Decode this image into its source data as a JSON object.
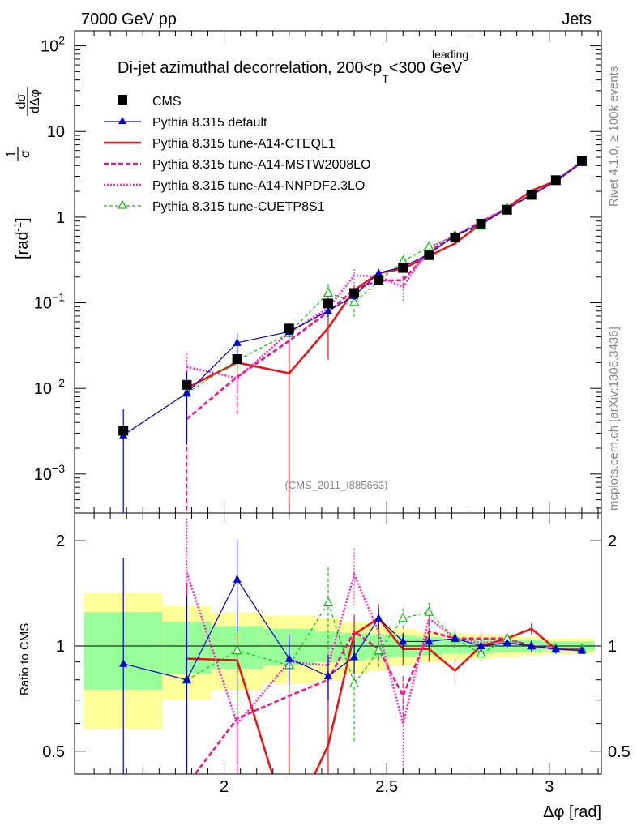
{
  "header": {
    "left_label": "7000 GeV pp",
    "right_label": "Jets"
  },
  "side_labels": {
    "rivet": "Rivet 4.1.0, ≥ 100k events",
    "source": "mcplots.cern.ch [arXiv:1306.3436]"
  },
  "colors": {
    "cms": "#000000",
    "default": "#0000cc",
    "cteql1": "#ee1111",
    "mstw": "#ee1188",
    "nnpdf": "#ff22cc",
    "cuetp8s1": "#11bb11",
    "band_outer": "#ffff99",
    "band_inner": "#99ff99"
  },
  "chart_data": {
    "type": "line",
    "title_main": "Di-jet azimuthal decorrelation, 200<p",
    "title_sup": "leading",
    "title_sub": "T",
    "title_end": "<300 GeV",
    "analysis_id": "(CMS_2011_I885663)",
    "ylabel": "1/σ dσ/dΔφ [rad⁻¹]",
    "ylabel_num": "dσ",
    "ylabel_den": "dΔφ",
    "ylabel_unit": "[rad",
    "ylabel_unit_exp": "-1",
    "ylabel_unit_end": "]",
    "ratio_ylabel": "Ratio to CMS",
    "xlabel": "Δφ [rad]",
    "xlim": [
      1.54,
      3.16
    ],
    "ylim_main": [
      0.00035,
      150
    ],
    "ylim_ratio": [
      0.43,
      2.4
    ],
    "x_ticks": [
      {
        "value": 2.0,
        "label": "2"
      },
      {
        "value": 2.5,
        "label": "2.5"
      },
      {
        "value": 3.0,
        "label": "3"
      }
    ],
    "y_ticks_main": [
      {
        "value": 0.001,
        "base": "10",
        "exp": "−3"
      },
      {
        "value": 0.01,
        "base": "10",
        "exp": "−2"
      },
      {
        "value": 0.1,
        "base": "10",
        "exp": "−1"
      },
      {
        "value": 1,
        "base": "1",
        "exp": ""
      },
      {
        "value": 10,
        "base": "10",
        "exp": ""
      },
      {
        "value": 100,
        "base": "10",
        "exp": "2"
      }
    ],
    "y_ticks_ratio": [
      {
        "value": 0.5,
        "label": "0.5"
      },
      {
        "value": 1,
        "label": "1"
      },
      {
        "value": 2,
        "label": "2"
      }
    ],
    "bins": [
      {
        "lo": 1.57,
        "hi": 1.81
      },
      {
        "lo": 1.81,
        "hi": 1.96
      },
      {
        "lo": 1.96,
        "hi": 2.12
      },
      {
        "lo": 2.12,
        "hi": 2.28
      },
      {
        "lo": 2.28,
        "hi": 2.36
      },
      {
        "lo": 2.36,
        "hi": 2.44
      },
      {
        "lo": 2.44,
        "hi": 2.51
      },
      {
        "lo": 2.51,
        "hi": 2.59
      },
      {
        "lo": 2.59,
        "hi": 2.67
      },
      {
        "lo": 2.67,
        "hi": 2.75
      },
      {
        "lo": 2.75,
        "hi": 2.83
      },
      {
        "lo": 2.83,
        "hi": 2.91
      },
      {
        "lo": 2.91,
        "hi": 2.98
      },
      {
        "lo": 2.98,
        "hi": 3.06
      },
      {
        "lo": 3.06,
        "hi": 3.14
      }
    ],
    "cms": {
      "name": "CMS",
      "x": [
        1.69,
        1.885,
        2.04,
        2.2,
        2.32,
        2.4,
        2.475,
        2.55,
        2.63,
        2.71,
        2.79,
        2.87,
        2.945,
        3.02,
        3.1
      ],
      "y": [
        0.0032,
        0.011,
        0.022,
        0.05,
        0.098,
        0.13,
        0.185,
        0.255,
        0.36,
        0.58,
        0.84,
        1.22,
        1.82,
        2.7,
        4.5
      ],
      "band_inner": [
        0.25,
        0.17,
        0.14,
        0.12,
        0.1,
        0.09,
        0.08,
        0.07,
        0.06,
        0.05,
        0.05,
        0.04,
        0.04,
        0.03,
        0.03
      ],
      "band_outer": [
        0.42,
        0.3,
        0.25,
        0.22,
        0.2,
        0.17,
        0.15,
        0.12,
        0.1,
        0.09,
        0.08,
        0.07,
        0.06,
        0.05,
        0.05
      ]
    },
    "series": [
      {
        "name": "Pythia 8.315 default",
        "key": "default",
        "marker": "triangle",
        "dash": "",
        "x": [
          1.69,
          1.885,
          2.04,
          2.2,
          2.32,
          2.4,
          2.475,
          2.55,
          2.63,
          2.71,
          2.79,
          2.87,
          2.945,
          3.02,
          3.1
        ],
        "ratio": [
          0.89,
          0.8,
          1.55,
          0.92,
          0.82,
          0.93,
          1.2,
          1.03,
          1.03,
          1.05,
          1.0,
          1.02,
          1.0,
          0.98,
          0.97
        ],
        "ratio_err": [
          0.9,
          0.6,
          0.45,
          0.15,
          0.12,
          0.1,
          0.08,
          0.06,
          0.05,
          0.04,
          0.04,
          0.03,
          0.03,
          0.03,
          0.02
        ]
      },
      {
        "name": "Pythia 8.315 tune-A14-CTEQL1",
        "key": "cteql1",
        "marker": "none",
        "dash": "",
        "x": [
          1.885,
          2.04,
          2.2,
          2.32,
          2.4,
          2.475,
          2.55,
          2.63,
          2.71,
          2.79,
          2.87,
          2.945,
          3.02,
          3.1
        ],
        "ratio": [
          0.92,
          0.91,
          0.3,
          0.52,
          1.08,
          1.2,
          0.98,
          0.98,
          0.85,
          1.0,
          1.05,
          1.12,
          0.98,
          0.98
        ],
        "ratio_err": [
          0.6,
          0.45,
          0.4,
          0.3,
          0.15,
          0.12,
          0.1,
          0.08,
          0.07,
          0.05,
          0.04,
          0.04,
          0.03,
          0.03
        ]
      },
      {
        "name": "Pythia 8.315 tune-A14-MSTW2008LO",
        "key": "mstw",
        "marker": "none",
        "dash": "6,3",
        "x": [
          1.885,
          2.04,
          2.2,
          2.32,
          2.4,
          2.475,
          2.55,
          2.63,
          2.71,
          2.79,
          2.87,
          2.945,
          3.02,
          3.1
        ],
        "ratio": [
          0.4,
          0.62,
          0.72,
          0.8,
          1.1,
          0.98,
          0.72,
          1.1,
          1.05,
          1.05,
          1.05,
          1.0,
          0.98,
          0.98
        ],
        "ratio_err": [
          0.5,
          0.4,
          0.2,
          0.15,
          0.12,
          0.1,
          0.1,
          0.08,
          0.06,
          0.05,
          0.04,
          0.04,
          0.03,
          0.03
        ]
      },
      {
        "name": "Pythia 8.315 tune-A14-NNPDF2.3LO",
        "key": "nnpdf",
        "marker": "none",
        "dash": "2,2",
        "x": [
          1.885,
          2.04,
          2.2,
          2.32,
          2.4,
          2.475,
          2.55,
          2.63,
          2.71,
          2.79,
          2.87,
          2.945,
          3.02,
          3.1
        ],
        "ratio": [
          1.62,
          0.6,
          0.9,
          0.88,
          1.6,
          1.1,
          0.6,
          1.2,
          1.05,
          1.02,
          1.03,
          1.0,
          0.98,
          0.97
        ],
        "ratio_err": [
          0.7,
          0.3,
          0.18,
          0.15,
          0.3,
          0.1,
          0.2,
          0.08,
          0.06,
          0.05,
          0.04,
          0.04,
          0.03,
          0.03
        ]
      },
      {
        "name": "Pythia 8.315 tune-CUETP8S1",
        "key": "cuetp8s1",
        "marker": "open-triangle",
        "dash": "4,3",
        "x": [
          1.885,
          2.04,
          2.2,
          2.32,
          2.4,
          2.475,
          2.55,
          2.63,
          2.71,
          2.79,
          2.87,
          2.945,
          3.02,
          3.1
        ],
        "ratio": [
          0.8,
          0.97,
          0.88,
          1.33,
          0.78,
          0.97,
          1.2,
          1.25,
          1.05,
          0.95,
          1.05,
          1.0,
          0.98,
          0.98
        ],
        "ratio_err": [
          0.5,
          0.35,
          0.15,
          0.35,
          0.25,
          0.1,
          0.08,
          0.08,
          0.06,
          0.05,
          0.04,
          0.04,
          0.03,
          0.03
        ]
      }
    ]
  }
}
